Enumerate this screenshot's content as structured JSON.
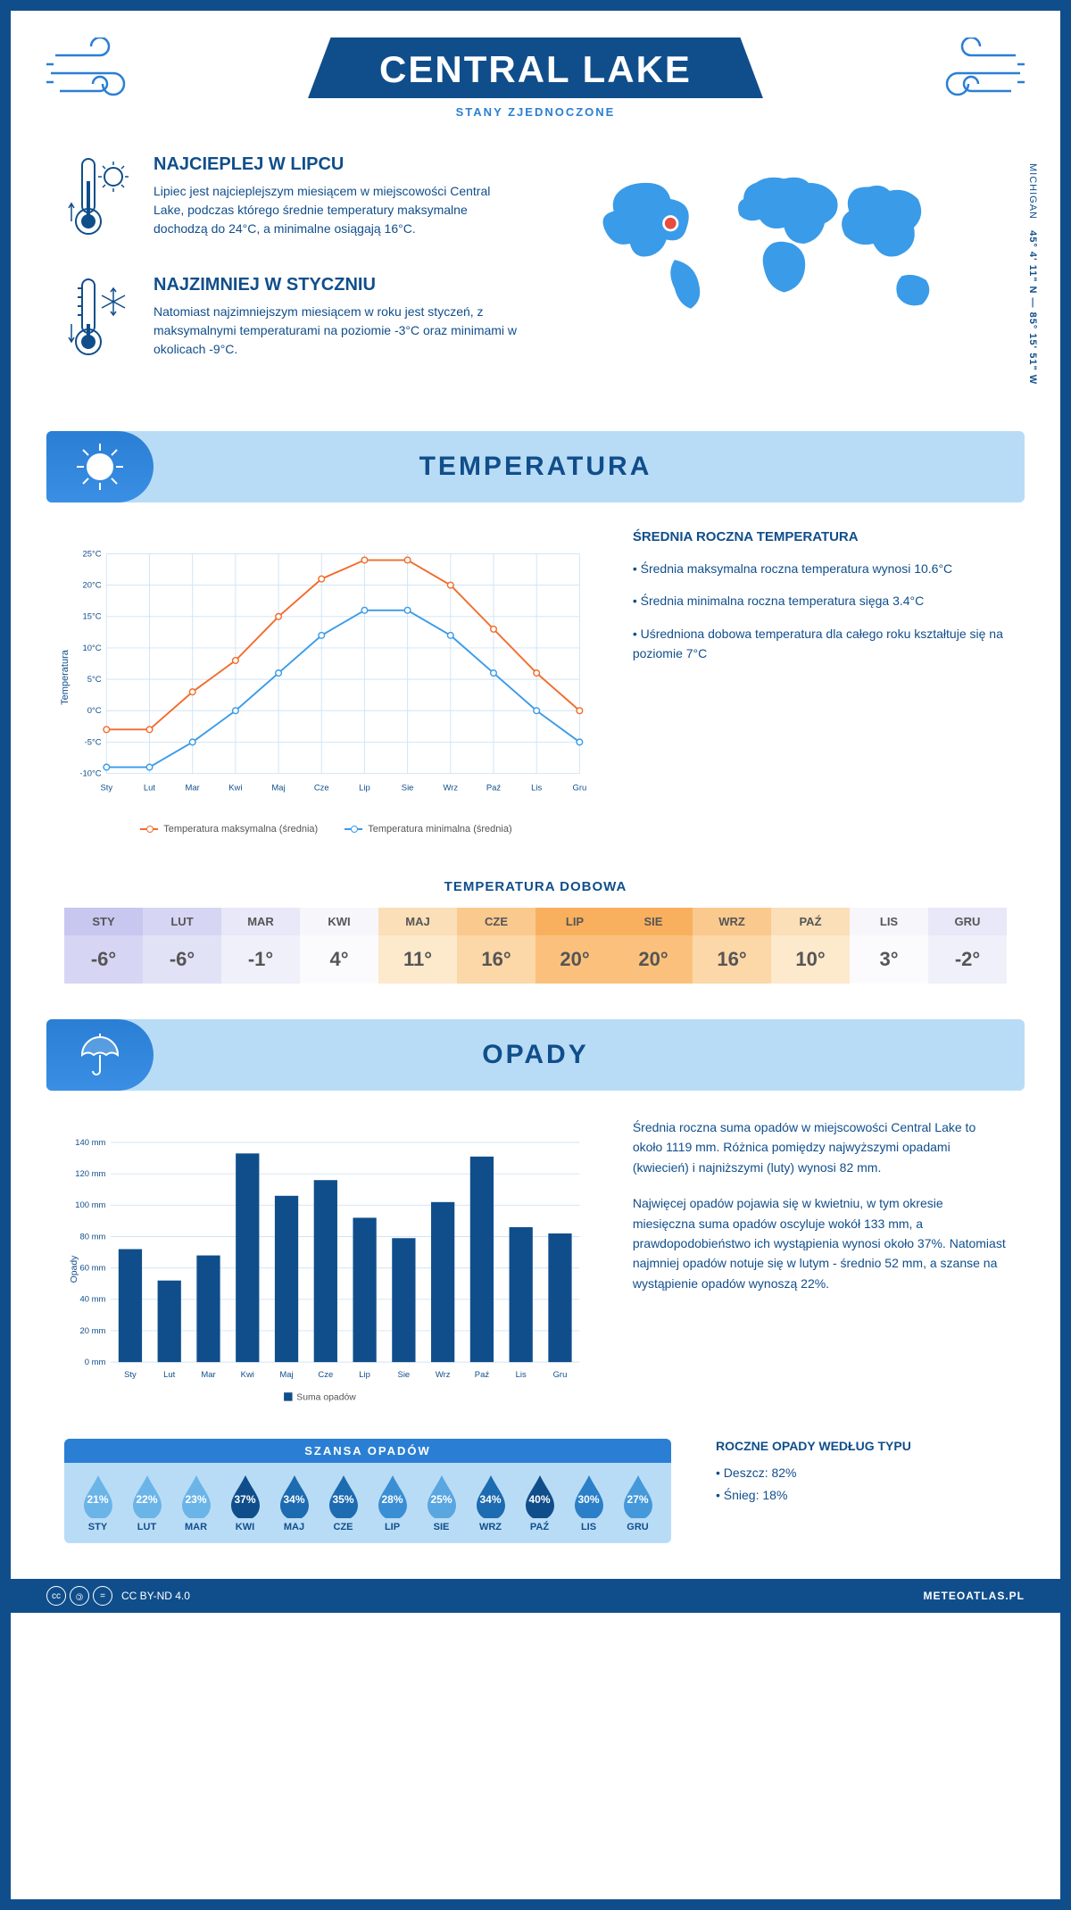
{
  "header": {
    "title": "CENTRAL LAKE",
    "subtitle": "STANY ZJEDNOCZONE",
    "coord_label": "MICHIGAN",
    "coords": "45° 4' 11\" N — 85° 15' 51\" W"
  },
  "intro": {
    "hot": {
      "title": "NAJCIEPLEJ W LIPCU",
      "text": "Lipiec jest najcieplejszym miesiącem w miejscowości Central Lake, podczas którego średnie temperatury maksymalne dochodzą do 24°C, a minimalne osiągają 16°C."
    },
    "cold": {
      "title": "NAJZIMNIEJ W STYCZNIU",
      "text": "Natomiast najzimniejszym miesiącem w roku jest styczeń, z maksymalnymi temperaturami na poziomie -3°C oraz minimami w okolicach -9°C."
    }
  },
  "temp_section": {
    "title": "TEMPERATURA",
    "chart": {
      "type": "line",
      "months": [
        "Sty",
        "Lut",
        "Mar",
        "Kwi",
        "Maj",
        "Cze",
        "Lip",
        "Sie",
        "Wrz",
        "Paź",
        "Lis",
        "Gru"
      ],
      "ylabel": "Temperatura",
      "ylim": [
        -10,
        25
      ],
      "ytick_step": 5,
      "ytick_labels": [
        "-10°C",
        "-5°C",
        "0°C",
        "5°C",
        "10°C",
        "15°C",
        "20°C",
        "25°C"
      ],
      "grid_color": "#d0e4f5",
      "series": [
        {
          "name": "Temperatura maksymalna (średnia)",
          "color": "#f26c2a",
          "values": [
            -3,
            -3,
            3,
            8,
            15,
            21,
            24,
            24,
            20,
            13,
            6,
            0
          ]
        },
        {
          "name": "Temperatura minimalna (średnia)",
          "color": "#3a9be8",
          "values": [
            -9,
            -9,
            -5,
            0,
            6,
            12,
            16,
            16,
            12,
            6,
            0,
            -5
          ]
        }
      ]
    },
    "summary": {
      "title": "ŚREDNIA ROCZNA TEMPERATURA",
      "bullets": [
        "• Średnia maksymalna roczna temperatura wynosi 10.6°C",
        "• Średnia minimalna roczna temperatura sięga 3.4°C",
        "• Uśredniona dobowa temperatura dla całego roku kształtuje się na poziomie 7°C"
      ]
    },
    "daily_title": "TEMPERATURA DOBOWA",
    "daily": {
      "months": [
        "STY",
        "LUT",
        "MAR",
        "KWI",
        "MAJ",
        "CZE",
        "LIP",
        "SIE",
        "WRZ",
        "PAŹ",
        "LIS",
        "GRU"
      ],
      "values": [
        "-6°",
        "-6°",
        "-1°",
        "4°",
        "11°",
        "16°",
        "20°",
        "20°",
        "16°",
        "10°",
        "3°",
        "-2°"
      ],
      "head_colors": [
        "#c7c7f0",
        "#d6d6f4",
        "#e8e8f8",
        "#f6f6fb",
        "#fbdfb8",
        "#fac98e",
        "#f8b05f",
        "#f8b05f",
        "#fac98e",
        "#fbdfb8",
        "#f6f6fb",
        "#e8e8f8"
      ],
      "val_colors": [
        "#d6d6f4",
        "#e2e2f7",
        "#f0f0fa",
        "#fbfbfd",
        "#fde9cc",
        "#fcd7a7",
        "#fbc17c",
        "#fbc17c",
        "#fcd7a7",
        "#fde9cc",
        "#fbfbfd",
        "#f0f0fa"
      ]
    }
  },
  "precip_section": {
    "title": "OPADY",
    "chart": {
      "type": "bar",
      "months": [
        "Sty",
        "Lut",
        "Mar",
        "Kwi",
        "Maj",
        "Cze",
        "Lip",
        "Sie",
        "Wrz",
        "Paź",
        "Lis",
        "Gru"
      ],
      "values": [
        72,
        52,
        68,
        133,
        106,
        116,
        92,
        79,
        102,
        131,
        86,
        82
      ],
      "ylabel": "Opady",
      "ylim": [
        0,
        140
      ],
      "ytick_step": 20,
      "ytick_labels": [
        "0 mm",
        "20 mm",
        "40 mm",
        "60 mm",
        "80 mm",
        "100 mm",
        "120 mm",
        "140 mm"
      ],
      "bar_color": "#104e8b",
      "grid_color": "#d0e4f5",
      "legend": "Suma opadów"
    },
    "text1": "Średnia roczna suma opadów w miejscowości Central Lake to około 1119 mm. Różnica pomiędzy najwyższymi opadami (kwiecień) i najniższymi (luty) wynosi 82 mm.",
    "text2": "Najwięcej opadów pojawia się w kwietniu, w tym okresie miesięczna suma opadów oscyluje wokół 133 mm, a prawdopodobieństwo ich wystąpienia wynosi około 37%. Natomiast najmniej opadów notuje się w lutym - średnio 52 mm, a szanse na wystąpienie opadów wynoszą 22%.",
    "chance": {
      "title": "SZANSA OPADÓW",
      "months": [
        "STY",
        "LUT",
        "MAR",
        "KWI",
        "MAJ",
        "CZE",
        "LIP",
        "SIE",
        "WRZ",
        "PAŹ",
        "LIS",
        "GRU"
      ],
      "pct": [
        "21%",
        "22%",
        "23%",
        "37%",
        "34%",
        "35%",
        "28%",
        "25%",
        "34%",
        "40%",
        "30%",
        "27%"
      ],
      "colors": [
        "#6bb4e8",
        "#6bb4e8",
        "#6bb4e8",
        "#104e8b",
        "#1d6bb0",
        "#1d6bb0",
        "#3a8fd4",
        "#5aa6e0",
        "#1d6bb0",
        "#104e8b",
        "#2a7fc8",
        "#4599da"
      ]
    },
    "type_title": "ROCZNE OPADY WEDŁUG TYPU",
    "type_rain": "• Deszcz: 82%",
    "type_snow": "• Śnieg: 18%"
  },
  "footer": {
    "license": "CC BY-ND 4.0",
    "site": "METEOATLAS.PL"
  }
}
